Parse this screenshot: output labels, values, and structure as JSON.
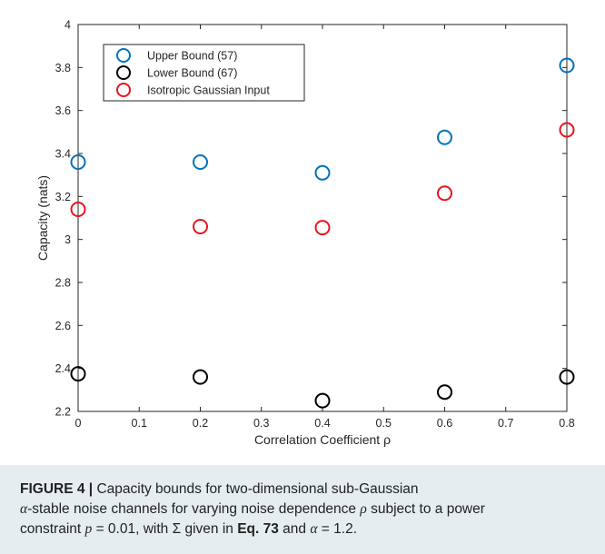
{
  "chart_data": {
    "type": "scatter",
    "xlabel": "Correlation Coefficient ρ",
    "ylabel": "Capacity (nats)",
    "xlim": [
      0,
      0.8
    ],
    "ylim": [
      2.2,
      4.0
    ],
    "xticks": [
      "0",
      "0.1",
      "0.2",
      "0.3",
      "0.4",
      "0.5",
      "0.6",
      "0.7",
      "0.8"
    ],
    "yticks": [
      "2.2",
      "2.4",
      "2.6",
      "2.8",
      "3",
      "3.2",
      "3.4",
      "3.6",
      "3.8",
      "4"
    ],
    "grid": false,
    "legend_position": "top-left",
    "x": [
      0,
      0.2,
      0.4,
      0.6,
      0.8
    ],
    "series": [
      {
        "name": "Upper Bound (57)",
        "color": "#0072bd",
        "values": [
          3.36,
          3.36,
          3.31,
          3.475,
          3.81
        ]
      },
      {
        "name": "Lower Bound (67)",
        "color": "#000000",
        "values": [
          2.375,
          2.36,
          2.25,
          2.29,
          2.36
        ]
      },
      {
        "name": "Isotropic Gaussian Input",
        "color": "#e8141c",
        "values": [
          3.14,
          3.06,
          3.055,
          3.215,
          3.51
        ]
      }
    ]
  },
  "caption": {
    "label": "FIGURE 4 |",
    "text1": " Capacity bounds for two-dimensional sub-Gaussian",
    "text2a": "α",
    "text2b": "-stable noise channels for varying noise dependence ",
    "text2c": "ρ",
    "text2d": " subject to a power",
    "text3a": "constraint ",
    "text3b": "p",
    "text3c": " = 0.01, with Σ given in ",
    "text3ref": "Eq. 73",
    "text3d": " and ",
    "text3e": "α",
    "text3f": " = 1.2."
  }
}
